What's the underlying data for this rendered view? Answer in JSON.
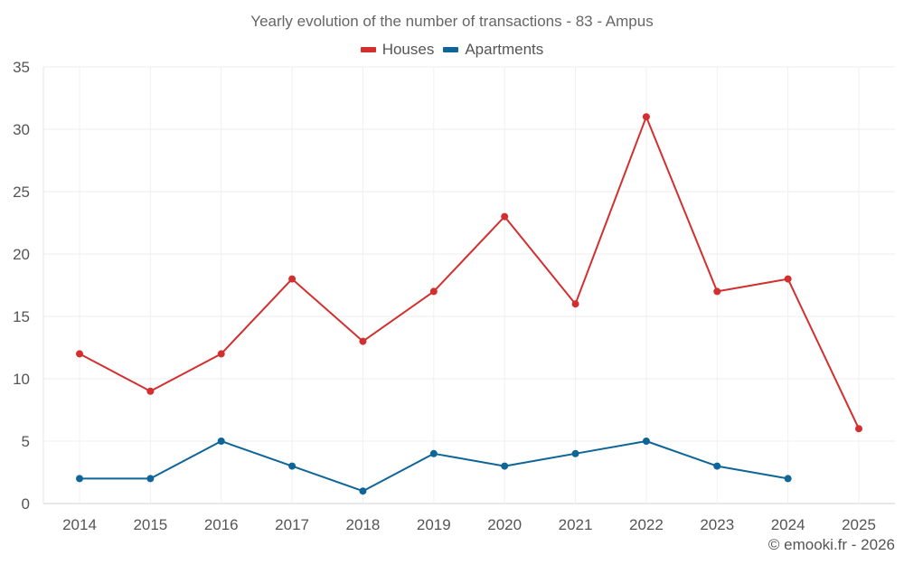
{
  "chart_data": {
    "type": "line",
    "title": "Yearly evolution of the number of transactions - 83 - Ampus",
    "xlabel": "",
    "ylabel": "",
    "categories": [
      "2014",
      "2015",
      "2016",
      "2017",
      "2018",
      "2019",
      "2020",
      "2021",
      "2022",
      "2023",
      "2024",
      "2025"
    ],
    "ylim": [
      0,
      35
    ],
    "yticks": [
      0,
      5,
      10,
      15,
      20,
      25,
      30,
      35
    ],
    "grid": true,
    "legend_position": "top-center",
    "series": [
      {
        "name": "Houses",
        "color": "#d32f2f",
        "values": [
          12,
          9,
          12,
          18,
          13,
          17,
          23,
          16,
          31,
          17,
          18,
          6
        ]
      },
      {
        "name": "Apartments",
        "color": "#0e6597",
        "values": [
          2,
          2,
          5,
          3,
          1,
          4,
          3,
          4,
          5,
          3,
          2,
          null
        ]
      }
    ]
  },
  "credit": "© emooki.fr - 2026"
}
